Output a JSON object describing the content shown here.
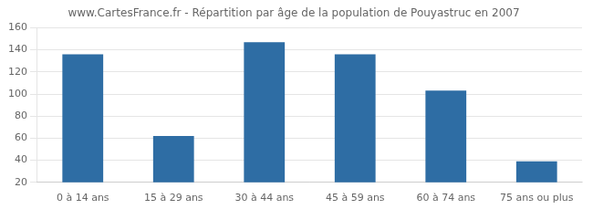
{
  "chart_data": {
    "type": "bar",
    "title": "www.CartesFrance.fr - Répartition par âge de la population de Pouyastruc en 2007",
    "categories": [
      "0 à 14 ans",
      "15 à 29 ans",
      "30 à 44 ans",
      "45 à 59 ans",
      "60 à 74 ans",
      "75 ans ou plus"
    ],
    "values": [
      136,
      62,
      147,
      136,
      103,
      39
    ],
    "color": "#2e6da4",
    "ylim": [
      20,
      160
    ],
    "yticks": [
      20,
      40,
      60,
      80,
      100,
      120,
      140,
      160
    ],
    "grid": true
  }
}
